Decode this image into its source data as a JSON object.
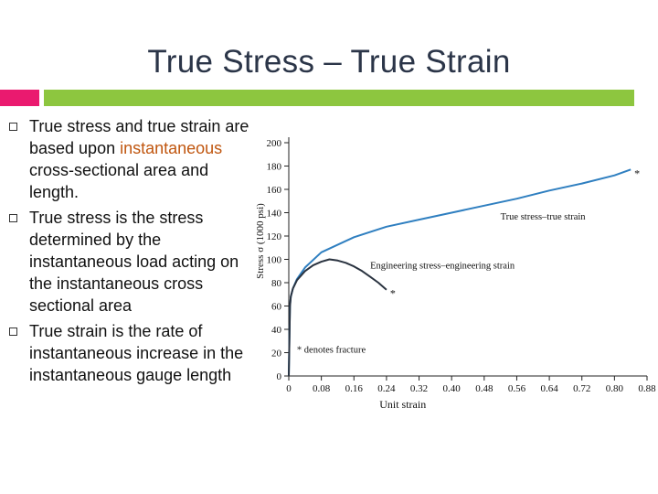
{
  "slide": {
    "title": "True Stress – True Strain",
    "accent_pink": "#ea1a6f",
    "accent_green": "#8dc63f",
    "bullets": [
      {
        "pre": "True stress and true strain are based upon ",
        "highlight": "instantaneous",
        "post": " cross-sectional area and length."
      },
      {
        "pre": "True stress is the stress determined by the instantaneous load acting on the instantaneous cross sectional area",
        "highlight": "",
        "post": ""
      },
      {
        "pre": "True strain is the rate of instantaneous increase in the instantaneous gauge length",
        "highlight": "",
        "post": ""
      }
    ]
  },
  "chart_data": {
    "type": "line",
    "xlabel": "Unit strain",
    "ylabel": "Stress σ (1000 psi)",
    "xlim": [
      0,
      0.88
    ],
    "ylim": [
      0,
      200
    ],
    "xticks": [
      "0",
      "0.08",
      "0.16",
      "0.24",
      "0.32",
      "0.40",
      "0.48",
      "0.56",
      "0.64",
      "0.72",
      "0.80",
      "0.88"
    ],
    "yticks": [
      "0",
      "20",
      "40",
      "60",
      "80",
      "100",
      "120",
      "140",
      "160",
      "180",
      "200"
    ],
    "grid": false,
    "series": [
      {
        "name": "True stress–true strain",
        "color": "#2f7fc0",
        "x": [
          0,
          0.003,
          0.005,
          0.01,
          0.02,
          0.04,
          0.08,
          0.16,
          0.24,
          0.32,
          0.4,
          0.48,
          0.56,
          0.64,
          0.72,
          0.8,
          0.84
        ],
        "y": [
          0,
          60,
          68,
          75,
          83,
          93,
          106,
          119,
          128,
          134,
          140,
          146,
          152,
          159,
          165,
          172,
          177
        ]
      },
      {
        "name": "Engineering stress–engineering strain",
        "color": "#2a3340",
        "x": [
          0,
          0.003,
          0.005,
          0.01,
          0.02,
          0.04,
          0.06,
          0.08,
          0.1,
          0.12,
          0.14,
          0.16,
          0.18,
          0.2,
          0.22,
          0.24
        ],
        "y": [
          0,
          60,
          68,
          75,
          82,
          90,
          95,
          98,
          100,
          99,
          97,
          94,
          90,
          85,
          80,
          74
        ]
      }
    ],
    "fracture_points": [
      {
        "x": 0.84,
        "y": 177,
        "label": "*"
      },
      {
        "x": 0.24,
        "y": 74,
        "label": "*"
      }
    ],
    "annotations": {
      "fracture_legend": "* denotes fracture"
    }
  }
}
